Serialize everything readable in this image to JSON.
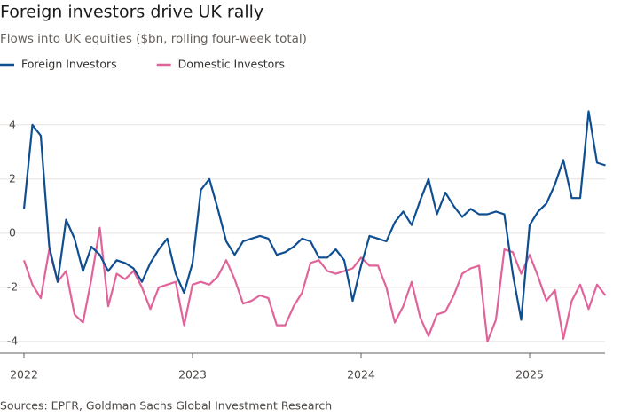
{
  "chart_data": {
    "type": "line",
    "title": "Foreign investors drive UK rally",
    "subtitle": "Flows into UK equities ($bn, rolling four-week total)",
    "source": "Sources: EPFR, Goldman Sachs Global Investment Research",
    "x": [
      2022.0,
      2022.05,
      2022.1,
      2022.15,
      2022.2,
      2022.25,
      2022.3,
      2022.35,
      2022.4,
      2022.45,
      2022.5,
      2022.55,
      2022.6,
      2022.65,
      2022.7,
      2022.75,
      2022.8,
      2022.85,
      2022.9,
      2022.95,
      2023.0,
      2023.05,
      2023.1,
      2023.15,
      2023.2,
      2023.25,
      2023.3,
      2023.35,
      2023.4,
      2023.45,
      2023.5,
      2023.55,
      2023.6,
      2023.65,
      2023.7,
      2023.75,
      2023.8,
      2023.85,
      2023.9,
      2023.95,
      2024.0,
      2024.05,
      2024.1,
      2024.15,
      2024.2,
      2024.25,
      2024.3,
      2024.35,
      2024.4,
      2024.45,
      2024.5,
      2024.55,
      2024.6,
      2024.65,
      2024.7,
      2024.75,
      2024.8,
      2024.85,
      2024.9,
      2024.95,
      2025.0,
      2025.05,
      2025.1,
      2025.15,
      2025.2,
      2025.25,
      2025.3,
      2025.35,
      2025.4,
      2025.45
    ],
    "series": [
      {
        "name": "Foreign Investors",
        "color": "#0f4f91",
        "values": [
          0.9,
          4.0,
          3.6,
          -0.5,
          -1.8,
          0.5,
          -0.2,
          -1.4,
          -0.5,
          -0.8,
          -1.4,
          -1.0,
          -1.1,
          -1.3,
          -1.8,
          -1.1,
          -0.6,
          -0.2,
          -1.5,
          -2.2,
          -1.1,
          1.6,
          2.0,
          0.9,
          -0.3,
          -0.8,
          -0.3,
          -0.2,
          -0.1,
          -0.2,
          -0.8,
          -0.7,
          -0.5,
          -0.2,
          -0.3,
          -0.9,
          -0.9,
          -0.6,
          -1.0,
          -2.5,
          -1.2,
          -0.1,
          -0.2,
          -0.3,
          0.4,
          0.8,
          0.3,
          1.2,
          2.0,
          0.7,
          1.5,
          1.0,
          0.6,
          0.9,
          0.7,
          0.7,
          0.8,
          0.7,
          -1.5,
          -3.2,
          0.3,
          0.8,
          1.1,
          1.8,
          2.7,
          1.3,
          1.3,
          4.5,
          2.6,
          2.5
        ]
      },
      {
        "name": "Domestic Investors",
        "color": "#e0649a",
        "values": [
          -1.0,
          -1.9,
          -2.4,
          -0.6,
          -1.8,
          -1.4,
          -3.0,
          -3.3,
          -1.7,
          0.2,
          -2.7,
          -1.5,
          -1.7,
          -1.4,
          -2.0,
          -2.8,
          -2.0,
          -1.9,
          -1.8,
          -3.4,
          -1.9,
          -1.8,
          -1.9,
          -1.6,
          -1.0,
          -1.7,
          -2.6,
          -2.5,
          -2.3,
          -2.4,
          -3.4,
          -3.4,
          -2.7,
          -2.2,
          -1.1,
          -1.0,
          -1.4,
          -1.5,
          -1.4,
          -1.3,
          -0.9,
          -1.2,
          -1.2,
          -2.0,
          -3.3,
          -2.7,
          -1.8,
          -3.1,
          -3.8,
          -3.0,
          -2.9,
          -2.3,
          -1.5,
          -1.3,
          -1.2,
          -4.0,
          -3.2,
          -0.6,
          -0.7,
          -1.5,
          -0.8,
          -1.6,
          -2.5,
          -2.1,
          -3.9,
          -2.5,
          -1.9,
          -2.8,
          -1.9,
          -2.3
        ]
      }
    ],
    "xlim": [
      2022,
      2025.45
    ],
    "xticks": [
      2022,
      2023,
      2024,
      2025
    ],
    "ylim": [
      -4.43,
      5.5
    ],
    "yticks": [
      -4,
      -2,
      0,
      2,
      4
    ],
    "grid": true,
    "legend": "top-left"
  }
}
